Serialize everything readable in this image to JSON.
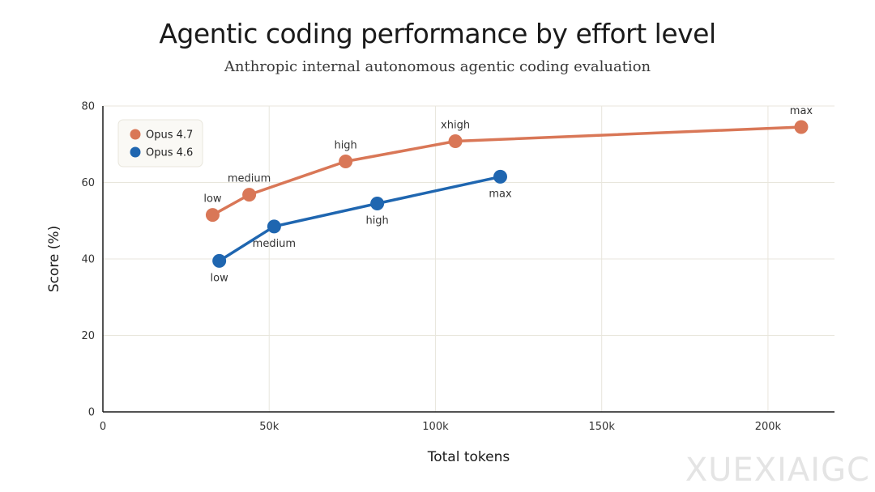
{
  "chart_data": {
    "type": "line",
    "title": "Agentic coding performance by effort level",
    "subtitle": "Anthropic internal autonomous agentic coding evaluation",
    "xlabel": "Total tokens",
    "ylabel": "Score (%)",
    "xlim": [
      0,
      220000
    ],
    "ylim": [
      0,
      80
    ],
    "x_ticks": [
      0,
      50000,
      100000,
      150000,
      200000
    ],
    "x_tick_labels": [
      "0",
      "50k",
      "100k",
      "150k",
      "200k"
    ],
    "y_ticks": [
      0,
      20,
      40,
      60,
      80
    ],
    "y_tick_labels": [
      "0",
      "20",
      "40",
      "60",
      "80"
    ],
    "grid": true,
    "legend_position": "top-left",
    "series": [
      {
        "name": "Opus 4.7",
        "color": "#D97757",
        "label_side": "above",
        "points": [
          {
            "x": 33000,
            "y": 51.5,
            "label": "low"
          },
          {
            "x": 44000,
            "y": 56.8,
            "label": "medium"
          },
          {
            "x": 73000,
            "y": 65.5,
            "label": "high"
          },
          {
            "x": 106000,
            "y": 70.8,
            "label": "xhigh"
          },
          {
            "x": 210000,
            "y": 74.5,
            "label": "max"
          }
        ]
      },
      {
        "name": "Opus 4.6",
        "color": "#1F66B0",
        "label_side": "below",
        "points": [
          {
            "x": 35000,
            "y": 39.5,
            "label": "low"
          },
          {
            "x": 51500,
            "y": 48.5,
            "label": "medium"
          },
          {
            "x": 82500,
            "y": 54.5,
            "label": "high"
          },
          {
            "x": 119500,
            "y": 61.5,
            "label": "max"
          }
        ]
      }
    ]
  },
  "watermark": "XUEXIAIGC"
}
